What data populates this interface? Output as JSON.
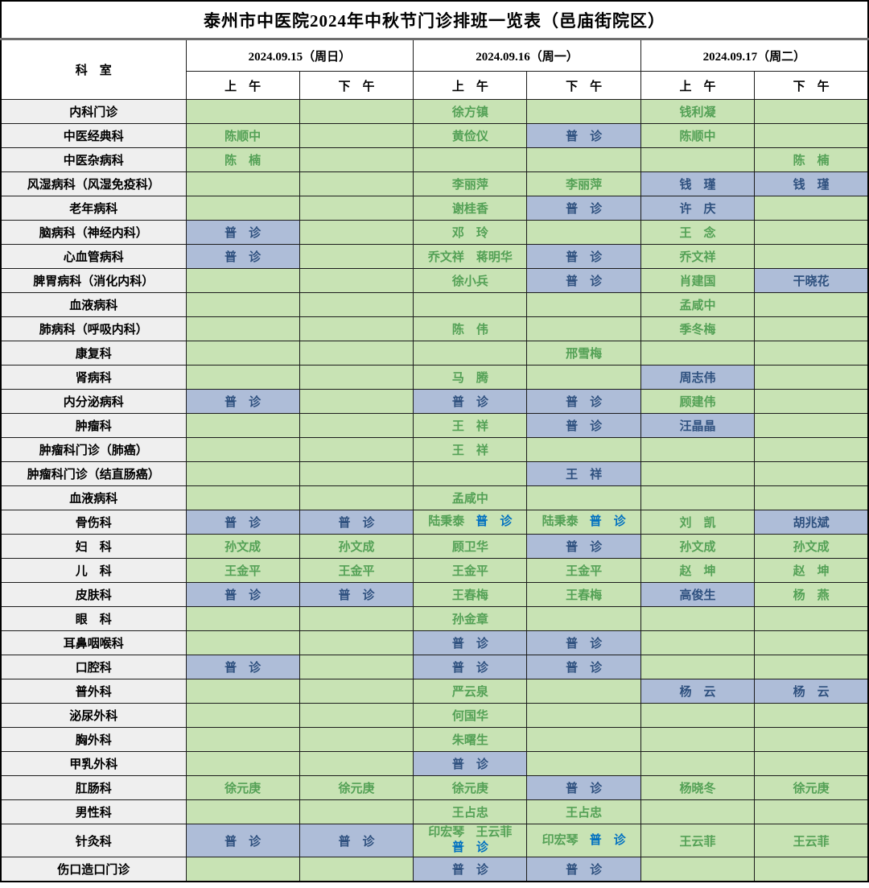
{
  "title": "泰州市中医院2024年中秋节门诊排班一览表（邑庙街院区）",
  "header": {
    "dept_label": "科　室",
    "days": [
      {
        "date": "2024.09.15（周日）",
        "am": "上　午",
        "pm": "下　午"
      },
      {
        "date": "2024.09.16（周一）",
        "am": "上　午",
        "pm": "下　午"
      },
      {
        "date": "2024.09.17（周二）",
        "am": "上　午",
        "pm": "下　午"
      }
    ]
  },
  "colors": {
    "open_cell_green": "#C8E3B4",
    "general_clinic_blue": "#AEBDD8",
    "dept_column_gray": "#EFEFEF",
    "name_text_green": "#54A156",
    "name_text_navy": "#2F517F",
    "general_clinic_text_blue": "#0070C0"
  },
  "rows": [
    {
      "dept": "内科门诊",
      "cells": [
        null,
        null,
        {
          "t": "徐方镇"
        },
        null,
        {
          "t": "钱利凝"
        },
        null
      ]
    },
    {
      "dept": "中医经典科",
      "cells": [
        {
          "t": "陈顺中"
        },
        null,
        {
          "t": "黄俭仪"
        },
        {
          "t": "普　诊",
          "bg": "b"
        },
        {
          "t": "陈顺中"
        },
        null
      ]
    },
    {
      "dept": "中医杂病科",
      "cells": [
        {
          "t": "陈　楠"
        },
        null,
        null,
        null,
        null,
        {
          "t": "陈　楠"
        }
      ]
    },
    {
      "dept": "风湿病科（风湿免疫科）",
      "cells": [
        null,
        null,
        {
          "t": "李丽萍"
        },
        {
          "t": "李丽萍"
        },
        {
          "t": "钱　瑾",
          "bg": "b"
        },
        {
          "t": "钱　瑾",
          "bg": "b"
        }
      ]
    },
    {
      "dept": "老年病科",
      "cells": [
        null,
        null,
        {
          "t": "谢桂香"
        },
        {
          "t": "普　诊",
          "bg": "b"
        },
        {
          "t": "许　庆",
          "bg": "b"
        },
        null
      ]
    },
    {
      "dept": "脑病科（神经内科）",
      "cells": [
        {
          "t": "普　诊",
          "bg": "b"
        },
        null,
        {
          "t": "邓　玲"
        },
        null,
        {
          "t": "王　念"
        },
        null
      ]
    },
    {
      "dept": "心血管病科",
      "cells": [
        {
          "t": "普　诊",
          "bg": "b"
        },
        null,
        {
          "t": "乔文祥　蒋明华"
        },
        {
          "t": "普　诊",
          "bg": "b"
        },
        {
          "t": "乔文祥"
        },
        null
      ]
    },
    {
      "dept": "脾胃病科（消化内科）",
      "cells": [
        null,
        null,
        {
          "t": "徐小兵"
        },
        {
          "t": "普　诊",
          "bg": "b"
        },
        {
          "t": "肖建国"
        },
        {
          "t": "干晓花",
          "bg": "b"
        }
      ]
    },
    {
      "dept": "血液病科",
      "cells": [
        null,
        null,
        null,
        null,
        {
          "t": "孟咸中"
        },
        null
      ]
    },
    {
      "dept": "肺病科（呼吸内科）",
      "cells": [
        null,
        null,
        {
          "t": "陈　伟"
        },
        null,
        {
          "t": "季冬梅"
        },
        null
      ]
    },
    {
      "dept": "康复科",
      "cells": [
        null,
        null,
        null,
        {
          "t": "邢雪梅"
        },
        null,
        null
      ]
    },
    {
      "dept": "肾病科",
      "cells": [
        null,
        null,
        {
          "t": "马　腾"
        },
        null,
        {
          "t": "周志伟",
          "bg": "b"
        },
        null
      ]
    },
    {
      "dept": "内分泌病科",
      "cells": [
        {
          "t": "普　诊",
          "bg": "b"
        },
        null,
        {
          "t": "普　诊",
          "bg": "b"
        },
        {
          "t": "普　诊",
          "bg": "b"
        },
        {
          "t": "顾建伟"
        },
        null
      ]
    },
    {
      "dept": "肿瘤科",
      "cells": [
        null,
        null,
        {
          "t": "王　祥"
        },
        {
          "t": "普　诊",
          "bg": "b"
        },
        {
          "t": "汪晶晶",
          "bg": "b"
        },
        null
      ]
    },
    {
      "dept": "肿瘤科门诊（肺癌）",
      "cells": [
        null,
        null,
        {
          "t": "王　祥"
        },
        null,
        null,
        null
      ]
    },
    {
      "dept": "肿瘤科门诊（结直肠癌）",
      "cells": [
        null,
        null,
        null,
        {
          "t": "王　祥",
          "bg": "b"
        },
        null,
        null
      ]
    },
    {
      "dept": "血液病科",
      "cells": [
        null,
        null,
        {
          "t": "孟咸中"
        },
        null,
        null,
        null
      ]
    },
    {
      "dept": "骨伤科",
      "cells": [
        {
          "t": "普　诊",
          "bg": "b"
        },
        {
          "t": "普　诊",
          "bg": "b"
        },
        {
          "seg": [
            [
              "陆秉泰",
              "g"
            ],
            [
              "普　诊",
              "bb"
            ]
          ]
        },
        {
          "seg": [
            [
              "陆秉泰",
              "g"
            ],
            [
              "普　诊",
              "bb"
            ]
          ]
        },
        {
          "t": "刘　凯"
        },
        {
          "t": "胡兆斌",
          "bg": "b"
        }
      ]
    },
    {
      "dept": "妇　科",
      "cells": [
        {
          "t": "孙文成"
        },
        {
          "t": "孙文成"
        },
        {
          "t": "顾卫华"
        },
        {
          "t": "普　诊",
          "bg": "b"
        },
        {
          "t": "孙文成"
        },
        {
          "t": "孙文成"
        }
      ]
    },
    {
      "dept": "儿　科",
      "cells": [
        {
          "t": "王金平"
        },
        {
          "t": "王金平"
        },
        {
          "t": "王金平"
        },
        {
          "t": "王金平"
        },
        {
          "t": "赵　坤"
        },
        {
          "t": "赵　坤"
        }
      ]
    },
    {
      "dept": "皮肤科",
      "cells": [
        {
          "t": "普　诊",
          "bg": "b"
        },
        {
          "t": "普　诊",
          "bg": "b"
        },
        {
          "t": "王春梅"
        },
        {
          "t": "王春梅"
        },
        {
          "t": "高俊生",
          "bg": "b"
        },
        {
          "t": "杨　燕"
        }
      ]
    },
    {
      "dept": "眼　科",
      "cells": [
        null,
        null,
        {
          "t": "孙金章"
        },
        null,
        null,
        null
      ]
    },
    {
      "dept": "耳鼻咽喉科",
      "cells": [
        null,
        null,
        {
          "t": "普　诊",
          "bg": "b"
        },
        {
          "t": "普　诊",
          "bg": "b"
        },
        null,
        null
      ]
    },
    {
      "dept": "口腔科",
      "cells": [
        {
          "t": "普　诊",
          "bg": "b"
        },
        null,
        {
          "t": "普　诊",
          "bg": "b"
        },
        {
          "t": "普　诊",
          "bg": "b"
        },
        null,
        null
      ]
    },
    {
      "dept": "普外科",
      "cells": [
        null,
        null,
        {
          "t": "严云泉"
        },
        null,
        {
          "t": "杨　云",
          "bg": "b"
        },
        {
          "t": "杨　云",
          "bg": "b"
        }
      ]
    },
    {
      "dept": "泌尿外科",
      "cells": [
        null,
        null,
        {
          "t": "何国华"
        },
        null,
        null,
        null
      ]
    },
    {
      "dept": "胸外科",
      "cells": [
        null,
        null,
        {
          "t": "朱曙生"
        },
        null,
        null,
        null
      ]
    },
    {
      "dept": "甲乳外科",
      "cells": [
        null,
        null,
        {
          "t": "普　诊",
          "bg": "b"
        },
        null,
        null,
        null
      ]
    },
    {
      "dept": "肛肠科",
      "cells": [
        {
          "t": "徐元庚"
        },
        {
          "t": "徐元庚"
        },
        {
          "t": "徐元庚"
        },
        {
          "t": "普　诊",
          "bg": "b"
        },
        {
          "t": "杨晓冬"
        },
        {
          "t": "徐元庚"
        }
      ]
    },
    {
      "dept": "男性科",
      "cells": [
        null,
        null,
        {
          "t": "王占忠"
        },
        {
          "t": "王占忠"
        },
        null,
        null
      ]
    },
    {
      "dept": "针灸科",
      "tall": true,
      "cells": [
        {
          "t": "普　诊",
          "bg": "b"
        },
        {
          "t": "普　诊",
          "bg": "b"
        },
        {
          "seg": [
            [
              "印宏琴",
              "g"
            ],
            [
              "王云菲",
              "g"
            ]
          ],
          "seg2": [
            [
              "普　诊",
              "bb"
            ]
          ]
        },
        {
          "seg": [
            [
              "印宏琴",
              "g"
            ],
            [
              "普　诊",
              "bb"
            ]
          ]
        },
        {
          "t": "王云菲"
        },
        {
          "t": "王云菲"
        }
      ]
    },
    {
      "dept": "伤口造口门诊",
      "cells": [
        null,
        null,
        {
          "t": "普　诊",
          "bg": "b"
        },
        {
          "t": "普　诊",
          "bg": "b"
        },
        null,
        null
      ]
    }
  ]
}
